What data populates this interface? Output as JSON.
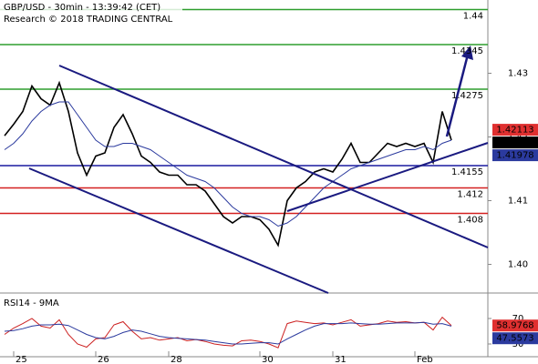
{
  "chart_data": [
    {
      "type": "line",
      "title": "GBP/USD - 30min - 13:39:42 (CET)",
      "subtitle": "Research © 2018 TRADING CENTRAL",
      "categories": [
        null,
        "25",
        null,
        null,
        null,
        null,
        null,
        null,
        null,
        null,
        "26",
        null,
        null,
        null,
        null,
        null,
        null,
        null,
        "28",
        null,
        null,
        null,
        null,
        null,
        null,
        null,
        null,
        null,
        "30",
        null,
        null,
        null,
        null,
        null,
        null,
        null,
        "31",
        null,
        null,
        null,
        null,
        null,
        null,
        null,
        null,
        "Feb",
        null,
        null,
        null,
        null
      ],
      "series": [
        {
          "color": "#000000",
          "values": [
            1.4202,
            1.422,
            1.424,
            1.428,
            1.426,
            1.425,
            1.4285,
            1.424,
            1.4175,
            1.414,
            1.417,
            1.4175,
            1.4215,
            1.4235,
            1.4205,
            1.417,
            1.416,
            1.4145,
            1.414,
            1.414,
            1.4125,
            1.4125,
            1.4115,
            1.4095,
            1.4075,
            1.4065,
            1.4075,
            1.4075,
            1.407,
            1.4055,
            1.403,
            1.41,
            1.412,
            1.413,
            1.4145,
            1.415,
            1.4145,
            1.4165,
            1.419,
            1.416,
            1.416,
            1.4175,
            1.419,
            1.4185,
            1.419,
            1.4185,
            1.419,
            1.416,
            1.424,
            1.4195
          ]
        },
        {
          "color": "#2b3a9e",
          "values": [
            1.418,
            1.419,
            1.4205,
            1.4225,
            1.424,
            1.425,
            1.4255,
            1.4255,
            1.4235,
            1.4215,
            1.4195,
            1.4185,
            1.4185,
            1.419,
            1.419,
            1.4185,
            1.418,
            1.417,
            1.416,
            1.415,
            1.414,
            1.4135,
            1.413,
            1.412,
            1.4105,
            1.409,
            1.408,
            1.4075,
            1.4075,
            1.407,
            1.406,
            1.4065,
            1.4075,
            1.409,
            1.4105,
            1.412,
            1.413,
            1.414,
            1.415,
            1.4155,
            1.416,
            1.4165,
            1.417,
            1.4175,
            1.418,
            1.418,
            1.4185,
            1.418,
            1.419,
            1.4195
          ]
        }
      ],
      "ylim": [
        1.3955,
        1.4415
      ],
      "yticks": [
        1.43,
        1.42,
        1.41,
        {
          "value": 1.4,
          "label": "1.40"
        }
      ],
      "levels": [
        {
          "value": 1.44,
          "color": "#2e9e2e"
        },
        {
          "value": 1.4345,
          "color": "#2e9e2e"
        },
        {
          "value": 1.4275,
          "color": "#2e9e2e"
        },
        {
          "value": 1.4155,
          "color": "#1a1aa0"
        },
        {
          "value": 1.412,
          "color": "#d42020"
        },
        {
          "value": 1.408,
          "color": "#d42020"
        }
      ],
      "markers": [
        {
          "value": 1.42113,
          "color": "#e03030"
        },
        {
          "value": 1.4204,
          "color": "#000000"
        },
        {
          "value": 1.41978,
          "color": "#2b3a9e"
        }
      ]
    },
    {
      "type": "line",
      "title": "RSI14 - 9MA",
      "series": [
        {
          "color": "#cc2020",
          "values": [
            45,
            55,
            62,
            70,
            58,
            55,
            68,
            45,
            30,
            25,
            38,
            40,
            60,
            65,
            50,
            38,
            40,
            36,
            38,
            40,
            35,
            37,
            34,
            30,
            28,
            27,
            35,
            36,
            34,
            30,
            24,
            62,
            66,
            64,
            62,
            63,
            60,
            64,
            68,
            58,
            60,
            62,
            66,
            64,
            65,
            63,
            64,
            52,
            72,
            59
          ]
        },
        {
          "color": "#2b3a9e",
          "values": [
            50,
            51,
            54,
            58,
            60,
            60,
            61,
            59,
            52,
            45,
            40,
            38,
            42,
            48,
            52,
            50,
            46,
            42,
            40,
            39,
            38,
            37,
            36,
            34,
            32,
            30,
            30,
            31,
            32,
            32,
            30,
            38,
            45,
            52,
            58,
            62,
            62,
            62,
            63,
            62,
            61,
            61,
            62,
            63,
            63,
            63,
            64,
            61,
            62,
            58
          ]
        }
      ],
      "ylim": [
        10,
        110
      ],
      "yticks": [
        70,
        30
      ],
      "markers": [
        {
          "value": 58.9768,
          "color": "#e03030"
        },
        {
          "value": 47.5573,
          "color": "#2b3a9e"
        }
      ]
    }
  ]
}
